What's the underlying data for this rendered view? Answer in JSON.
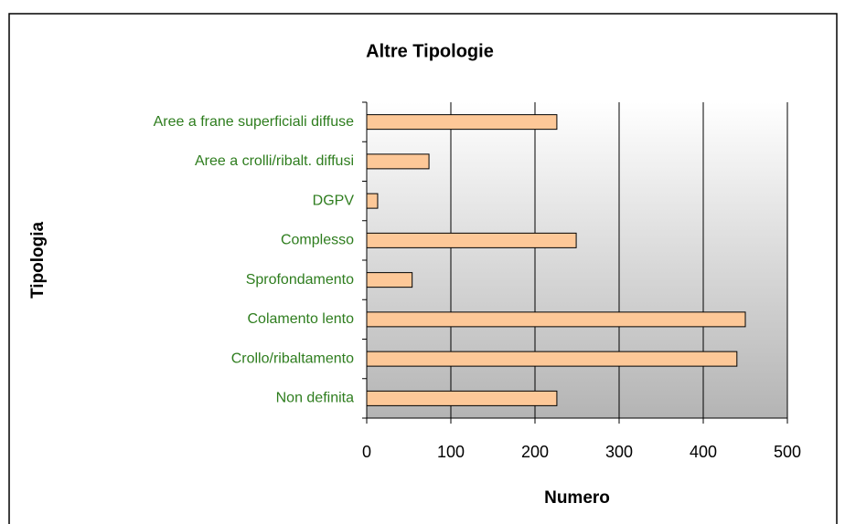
{
  "chart_data": {
    "type": "bar",
    "orientation": "horizontal",
    "title": "Altre Tipologie",
    "x_label": "Numero",
    "y_label": "Tipologia",
    "categories": [
      "Aree a frane superficiali diffuse",
      "Aree a crolli/ribalt. diffusi",
      "DGPV",
      "Complesso",
      "Sprofondamento",
      "Colamento lento",
      "Crollo/ribaltamento",
      "Non definita"
    ],
    "values": [
      226,
      74,
      13,
      249,
      54,
      450,
      440,
      226
    ],
    "color": "#fdc898",
    "xlim": [
      0,
      500
    ],
    "xticks": [
      0,
      100,
      200,
      300,
      400,
      500
    ],
    "grid": true
  }
}
